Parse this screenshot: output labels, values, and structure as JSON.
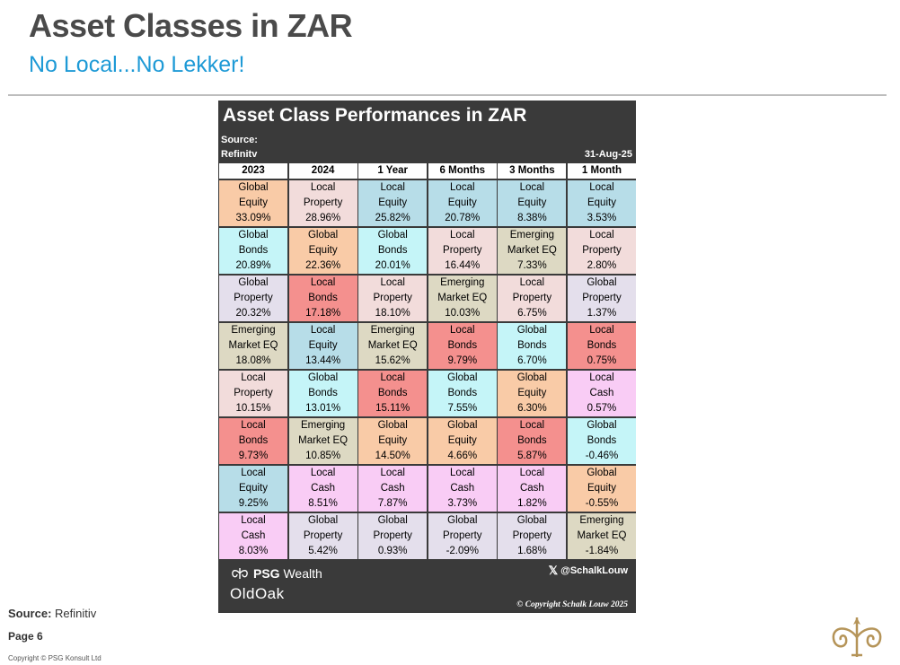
{
  "slide": {
    "title": "Asset Classes in ZAR",
    "subtitle": "No Local...No Lekker!"
  },
  "card": {
    "title": "Asset Class Performances in ZAR",
    "source_label": "Source:",
    "provider": "Refinitv",
    "date": "31-Aug-25",
    "headers": [
      "2023",
      "2024",
      "1 Year",
      "6 Months",
      "3 Months",
      "1 Month"
    ],
    "rows": [
      [
        {
          "line1": "Global",
          "line2": "Equity",
          "value": "33.09%",
          "color": "#f9cba7"
        },
        {
          "line1": "Local",
          "line2": "Property",
          "value": "28.96%",
          "color": "#f2dcdb"
        },
        {
          "line1": "Local",
          "line2": "Equity",
          "value": "25.82%",
          "color": "#b7dde8"
        },
        {
          "line1": "Local",
          "line2": "Equity",
          "value": "20.78%",
          "color": "#b7dde8"
        },
        {
          "line1": "Local",
          "line2": "Equity",
          "value": "8.38%",
          "color": "#b7dde8"
        },
        {
          "line1": "Local",
          "line2": "Equity",
          "value": "3.53%",
          "color": "#b7dde8"
        }
      ],
      [
        {
          "line1": "Global",
          "line2": "Bonds",
          "value": "20.89%",
          "color": "#c5f5f8"
        },
        {
          "line1": "Global",
          "line2": "Equity",
          "value": "22.36%",
          "color": "#f9cba7"
        },
        {
          "line1": "Global",
          "line2": "Bonds",
          "value": "20.01%",
          "color": "#c5f5f8"
        },
        {
          "line1": "Local",
          "line2": "Property",
          "value": "16.44%",
          "color": "#f2dcdb"
        },
        {
          "line1": "Emerging",
          "line2": "Market EQ",
          "value": "7.33%",
          "color": "#ddd9c3"
        },
        {
          "line1": "Local",
          "line2": "Property",
          "value": "2.80%",
          "color": "#f2dcdb"
        }
      ],
      [
        {
          "line1": "Global",
          "line2": "Property",
          "value": "20.32%",
          "color": "#e4dfec"
        },
        {
          "line1": "Local",
          "line2": "Bonds",
          "value": "17.18%",
          "color": "#f4908e"
        },
        {
          "line1": "Local",
          "line2": "Property",
          "value": "18.10%",
          "color": "#f2dcdb"
        },
        {
          "line1": "Emerging",
          "line2": "Market EQ",
          "value": "10.03%",
          "color": "#ddd9c3"
        },
        {
          "line1": "Local",
          "line2": "Property",
          "value": "6.75%",
          "color": "#f2dcdb"
        },
        {
          "line1": "Global",
          "line2": "Property",
          "value": "1.37%",
          "color": "#e4dfec"
        }
      ],
      [
        {
          "line1": "Emerging",
          "line2": "Market EQ",
          "value": "18.08%",
          "color": "#ddd9c3"
        },
        {
          "line1": "Local",
          "line2": "Equity",
          "value": "13.44%",
          "color": "#b7dde8"
        },
        {
          "line1": "Emerging",
          "line2": "Market EQ",
          "value": "15.62%",
          "color": "#ddd9c3"
        },
        {
          "line1": "Local",
          "line2": "Bonds",
          "value": "9.79%",
          "color": "#f4908e"
        },
        {
          "line1": "Global",
          "line2": "Bonds",
          "value": "6.70%",
          "color": "#c5f5f8"
        },
        {
          "line1": "Local",
          "line2": "Bonds",
          "value": "0.75%",
          "color": "#f4908e"
        }
      ],
      [
        {
          "line1": "Local",
          "line2": "Property",
          "value": "10.15%",
          "color": "#f2dcdb"
        },
        {
          "line1": "Global",
          "line2": "Bonds",
          "value": "13.01%",
          "color": "#c5f5f8"
        },
        {
          "line1": "Local",
          "line2": "Bonds",
          "value": "15.11%",
          "color": "#f4908e"
        },
        {
          "line1": "Global",
          "line2": "Bonds",
          "value": "7.55%",
          "color": "#c5f5f8"
        },
        {
          "line1": "Global",
          "line2": "Equity",
          "value": "6.30%",
          "color": "#f9cba7"
        },
        {
          "line1": "Local",
          "line2": "Cash",
          "value": "0.57%",
          "color": "#f9ccf5"
        }
      ],
      [
        {
          "line1": "Local",
          "line2": "Bonds",
          "value": "9.73%",
          "color": "#f4908e"
        },
        {
          "line1": "Emerging",
          "line2": "Market EQ",
          "value": "10.85%",
          "color": "#ddd9c3"
        },
        {
          "line1": "Global",
          "line2": "Equity",
          "value": "14.50%",
          "color": "#f9cba7"
        },
        {
          "line1": "Global",
          "line2": "Equity",
          "value": "4.66%",
          "color": "#f9cba7"
        },
        {
          "line1": "Local",
          "line2": "Bonds",
          "value": "5.87%",
          "color": "#f4908e"
        },
        {
          "line1": "Global",
          "line2": "Bonds",
          "value": "-0.46%",
          "color": "#c5f5f8"
        }
      ],
      [
        {
          "line1": "Local",
          "line2": "Equity",
          "value": "9.25%",
          "color": "#b7dde8"
        },
        {
          "line1": "Local",
          "line2": "Cash",
          "value": "8.51%",
          "color": "#f9ccf5"
        },
        {
          "line1": "Local",
          "line2": "Cash",
          "value": "7.87%",
          "color": "#f9ccf5"
        },
        {
          "line1": "Local",
          "line2": "Cash",
          "value": "3.73%",
          "color": "#f9ccf5"
        },
        {
          "line1": "Local",
          "line2": "Cash",
          "value": "1.82%",
          "color": "#f9ccf5"
        },
        {
          "line1": "Global",
          "line2": "Equity",
          "value": "-0.55%",
          "color": "#f9cba7"
        }
      ],
      [
        {
          "line1": "Local",
          "line2": "Cash",
          "value": "8.03%",
          "color": "#f9ccf5"
        },
        {
          "line1": "Global",
          "line2": "Property",
          "value": "5.42%",
          "color": "#e4dfec"
        },
        {
          "line1": "Global",
          "line2": "Property",
          "value": "0.93%",
          "color": "#e4dfec"
        },
        {
          "line1": "Global",
          "line2": "Property",
          "value": "-2.09%",
          "color": "#e4dfec"
        },
        {
          "line1": "Global",
          "line2": "Property",
          "value": "1.68%",
          "color": "#e4dfec"
        },
        {
          "line1": "Emerging",
          "line2": "Market EQ",
          "value": "-1.84%",
          "color": "#ddd9c3"
        }
      ]
    ],
    "brand_psg_bold": "PSG",
    "brand_psg_rest": " Wealth",
    "brand_oldoak": "OldOak",
    "twitter_icon": "x-logo-icon",
    "twitter_handle": "@SchalkLouw",
    "copyright": "© Copyright Schalk Louw 2025"
  },
  "footer": {
    "source_label": "Source:",
    "source_value": " Refinitiv",
    "page": "Page 6",
    "copyright": "Copyright © PSG Konsult Ltd"
  }
}
